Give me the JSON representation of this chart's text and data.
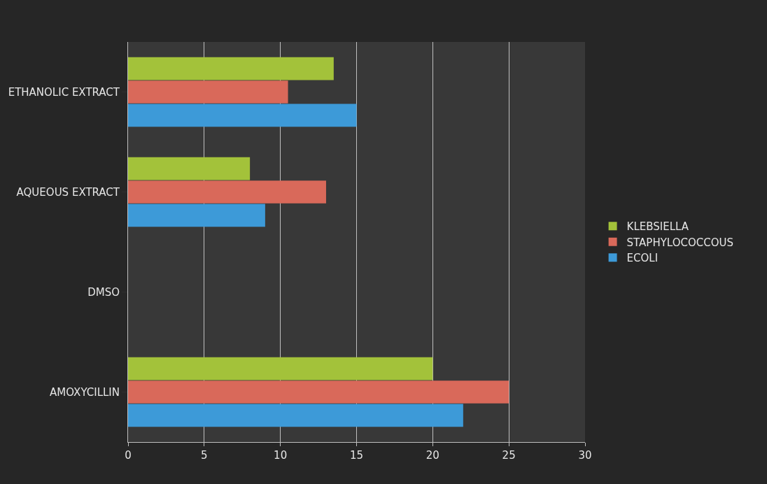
{
  "chart_data": {
    "type": "bar",
    "orientation": "horizontal",
    "categories": [
      "ETHANOLIC EXTRACT",
      "AQUEOUS EXTRACT",
      "DMSO",
      "AMOXYCILLIN"
    ],
    "series": [
      {
        "name": "KLEBSIELLA",
        "color": "#a3c23a",
        "values": [
          13.5,
          8,
          0,
          20
        ]
      },
      {
        "name": "STAPHYLOCOCCOUS",
        "color": "#d9695a",
        "values": [
          10.5,
          13,
          0,
          25
        ]
      },
      {
        "name": "ECOLI",
        "color": "#3d9ad8",
        "values": [
          15,
          9,
          0,
          22
        ]
      }
    ],
    "xlim": [
      0,
      30
    ],
    "xticks": [
      0,
      5,
      10,
      15,
      20,
      25,
      30
    ],
    "grid": "x",
    "legend": "right"
  }
}
